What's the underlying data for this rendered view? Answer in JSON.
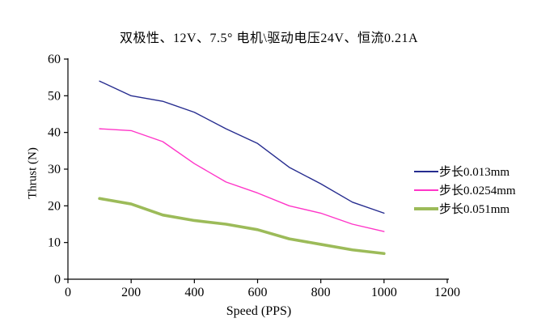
{
  "chart_data": {
    "type": "line",
    "title": "双极性、12V、7.5° 电机\\驱动电压24V、恒流0.21A",
    "xlabel": "Speed (PPS)",
    "ylabel": "Thrust (N)",
    "x": [
      100,
      200,
      300,
      400,
      500,
      600,
      700,
      800,
      900,
      1000
    ],
    "series": [
      {
        "name": "步长0.013mm",
        "color": "#262C8F",
        "width": 1.4,
        "values": [
          54,
          50,
          48.5,
          45.5,
          41,
          37,
          30.5,
          26,
          21,
          18
        ]
      },
      {
        "name": "步长0.0254mm",
        "color": "#FF35C8",
        "width": 1.4,
        "values": [
          41,
          40.5,
          37.5,
          31.5,
          26.5,
          23.5,
          20,
          18,
          15,
          13
        ]
      },
      {
        "name": "步长0.051mm",
        "color": "#9CBB59",
        "width": 3.6,
        "values": [
          22,
          20.5,
          17.5,
          16,
          15,
          13.5,
          11,
          9.5,
          8,
          7
        ]
      }
    ],
    "xlim": [
      0,
      1200
    ],
    "ylim": [
      0,
      60
    ],
    "xticks": [
      0,
      200,
      400,
      600,
      800,
      1000,
      1200
    ],
    "yticks": [
      0,
      10,
      20,
      30,
      40,
      50,
      60
    ],
    "grid": false,
    "legend_position": "right",
    "axis_color": "#000000",
    "background_color": "#FFFFFF"
  }
}
